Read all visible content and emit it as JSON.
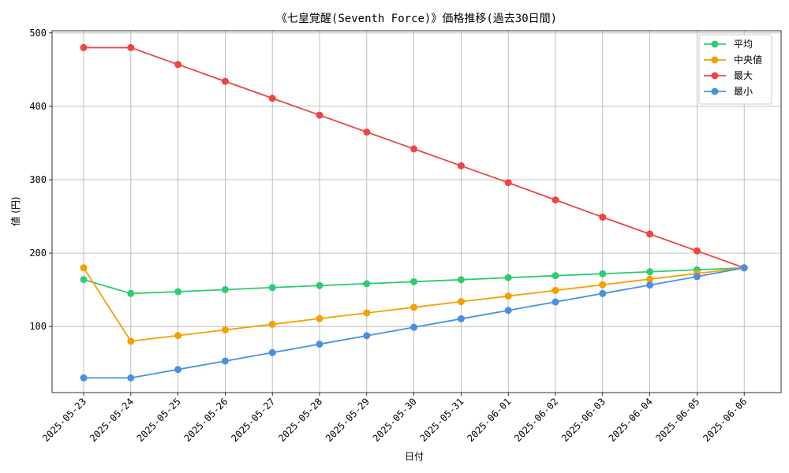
{
  "chart_data": {
    "type": "line",
    "title": "《七皇覚醒(Seventh Force)》価格推移(過去30日間)",
    "xlabel": "日付",
    "ylabel": "値 (円)",
    "categories": [
      "2025-05-23",
      "2025-05-24",
      "2025-05-25",
      "2025-05-26",
      "2025-05-27",
      "2025-05-28",
      "2025-05-29",
      "2025-05-30",
      "2025-05-31",
      "2025-06-01",
      "2025-06-02",
      "2025-06-03",
      "2025-06-04",
      "2025-06-05",
      "2025-06-06"
    ],
    "ylim": [
      10,
      503
    ],
    "yticks": [
      100,
      200,
      300,
      400,
      500
    ],
    "grid": true,
    "legend_position": "top-right",
    "series": [
      {
        "name": "平均",
        "color": "#2ecc71",
        "values": [
          164,
          145,
          147.5,
          150.3,
          153.1,
          155.8,
          158.4,
          161.1,
          163.8,
          166.6,
          169.3,
          171.9,
          174.6,
          177.3,
          180
        ]
      },
      {
        "name": "中央値",
        "color": "#f59f00",
        "values": [
          180,
          80,
          87.7,
          95.4,
          103.1,
          110.8,
          118.5,
          126.2,
          133.9,
          141.5,
          149.2,
          156.9,
          164.6,
          172.3,
          180
        ]
      },
      {
        "name": "最大",
        "color": "#ef4444",
        "values": [
          480,
          480,
          457,
          434,
          411,
          388,
          365,
          342,
          319,
          296,
          272.5,
          249,
          226,
          203,
          180
        ]
      },
      {
        "name": "最小",
        "color": "#4a90e2",
        "values": [
          30,
          30,
          41.5,
          53,
          64.5,
          76,
          87.5,
          99,
          110.5,
          122,
          133.5,
          145,
          156.5,
          168,
          180
        ]
      }
    ]
  }
}
